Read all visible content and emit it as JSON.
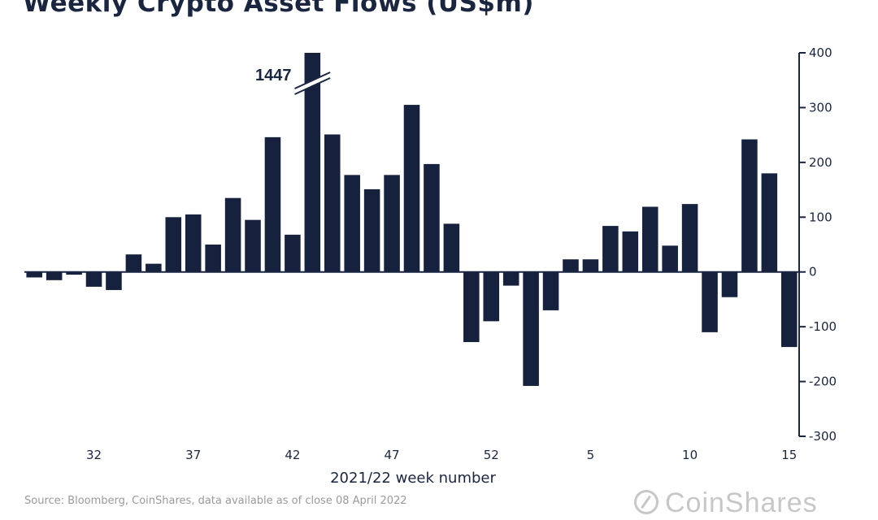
{
  "chart_data": {
    "type": "bar",
    "title": "Weekly Crypto Asset Flows (US$m)",
    "xlabel": "2021/22 week number",
    "ylabel": "",
    "ylim": [
      -300,
      400
    ],
    "yticks": [
      400,
      300,
      200,
      100,
      0,
      -100,
      -200,
      -300
    ],
    "y_axis_side": "right",
    "grid": false,
    "bar_color": "#16213e",
    "categories": [
      "29",
      "30",
      "31",
      "32",
      "33",
      "34",
      "35",
      "36",
      "37",
      "38",
      "39",
      "40",
      "41",
      "42",
      "43",
      "44",
      "45",
      "46",
      "47",
      "48",
      "49",
      "50",
      "51",
      "52",
      "1",
      "2",
      "3",
      "4",
      "5",
      "6",
      "7",
      "8",
      "9",
      "10",
      "11",
      "12",
      "13",
      "14",
      "15"
    ],
    "x_tick_labels": [
      "32",
      "37",
      "42",
      "47",
      "52",
      "5",
      "10",
      "15"
    ],
    "x_tick_categories": [
      "32",
      "37",
      "42",
      "47",
      "52",
      "5",
      "10",
      "15"
    ],
    "values": [
      -10,
      -15,
      -5,
      -27,
      -33,
      32,
      15,
      100,
      105,
      50,
      135,
      95,
      246,
      68,
      1447,
      251,
      177,
      151,
      177,
      305,
      197,
      88,
      -128,
      -90,
      -25,
      -208,
      -70,
      23,
      23,
      84,
      74,
      119,
      48,
      124,
      -110,
      -46,
      242,
      180,
      -137
    ],
    "annotations": [
      {
        "category": "43",
        "text": "1447",
        "note": "axis break"
      }
    ]
  },
  "source": "Source: Bloomberg, CoinShares, data available as of close 08 April 2022",
  "logo_text": "CoinShares"
}
